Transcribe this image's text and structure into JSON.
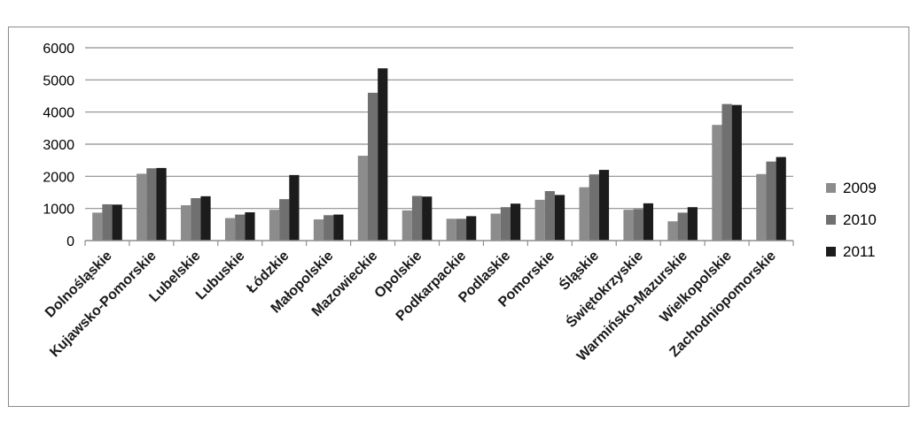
{
  "chart_data": {
    "type": "bar",
    "title": "",
    "xlabel": "",
    "ylabel": "",
    "ylim": [
      0,
      6000
    ],
    "yticks": [
      0,
      1000,
      2000,
      3000,
      4000,
      5000,
      6000
    ],
    "grid": "horizontal",
    "legend_position": "right",
    "categories": [
      "Dolnośląskie",
      "Kujawsko-Pomorskie",
      "Lubelskie",
      "Lubuskie",
      "Łódzkie",
      "Małopolskie",
      "Mazowieckie",
      "Opolskie",
      "Podkarpackie",
      "Podlaskie",
      "Pomorskie",
      "Śląskie",
      "Świętokrzyskie",
      "Warmińsko-Mazurskie",
      "Wielkopolskie",
      "Zachodniopomorskie"
    ],
    "series": [
      {
        "name": "2009",
        "color": "#8c8c8c",
        "values": [
          870,
          2080,
          1100,
          700,
          960,
          660,
          2640,
          940,
          680,
          840,
          1270,
          1660,
          960,
          600,
          3600,
          2070
        ]
      },
      {
        "name": "2010",
        "color": "#707070",
        "values": [
          1130,
          2250,
          1320,
          810,
          1290,
          790,
          4600,
          1390,
          680,
          1040,
          1540,
          2060,
          980,
          870,
          4250,
          2460
        ]
      },
      {
        "name": "2011",
        "color": "#1c1c1c",
        "values": [
          1120,
          2260,
          1380,
          880,
          2040,
          810,
          5360,
          1370,
          760,
          1150,
          1420,
          2200,
          1160,
          1040,
          4220,
          2600
        ]
      }
    ]
  }
}
